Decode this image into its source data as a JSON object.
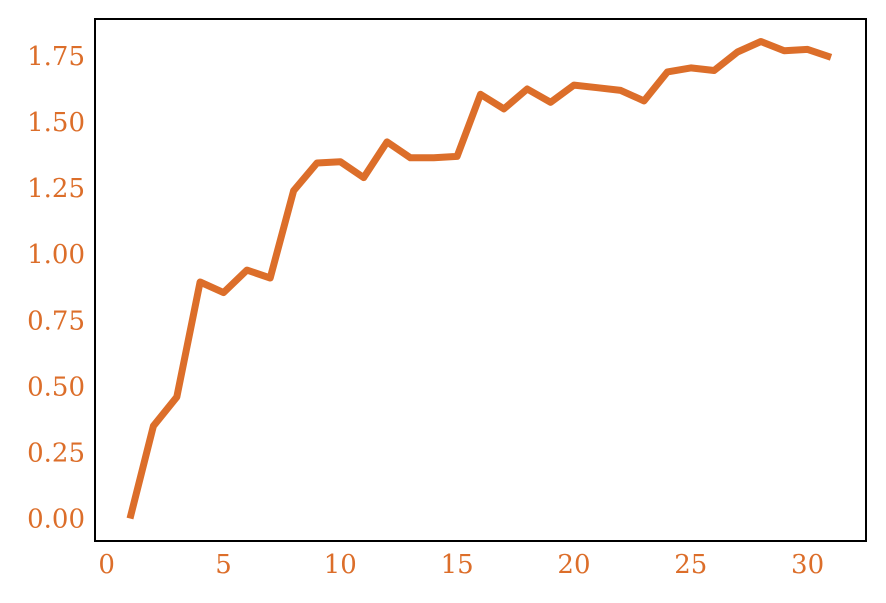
{
  "chart_data": {
    "type": "line",
    "title": "",
    "xlabel": "",
    "ylabel": "",
    "xlim": [
      -0.5,
      32.5
    ],
    "ylim": [
      -0.085,
      1.89
    ],
    "x_ticks": [
      0,
      5,
      10,
      15,
      20,
      25,
      30
    ],
    "y_ticks": [
      0.0,
      0.25,
      0.5,
      0.75,
      1.0,
      1.25,
      1.5,
      1.75
    ],
    "x_tick_labels": [
      "0",
      "5",
      "10",
      "15",
      "20",
      "25",
      "30"
    ],
    "y_tick_labels": [
      "0.00",
      "0.25",
      "0.50",
      "0.75",
      "1.00",
      "1.25",
      "1.50",
      "1.75"
    ],
    "grid": false,
    "legend": "none",
    "colors": {
      "line": "#dc6e2a",
      "tick_label": "#dc6e2a",
      "axes": "#000000"
    },
    "series": [
      {
        "x": [
          1,
          2,
          3,
          4,
          5,
          6,
          7,
          8,
          9,
          10,
          11,
          12,
          13,
          14,
          15,
          16,
          17,
          18,
          19,
          20,
          21,
          22,
          23,
          24,
          25,
          26,
          27,
          28,
          29,
          30,
          31
        ],
        "values": [
          0.0,
          0.35,
          0.46,
          0.895,
          0.855,
          0.94,
          0.91,
          1.24,
          1.345,
          1.35,
          1.29,
          1.425,
          1.365,
          1.365,
          1.37,
          1.605,
          1.55,
          1.625,
          1.575,
          1.64,
          1.63,
          1.62,
          1.58,
          1.69,
          1.705,
          1.695,
          1.765,
          1.805,
          1.77,
          1.775,
          1.745
        ]
      }
    ]
  }
}
